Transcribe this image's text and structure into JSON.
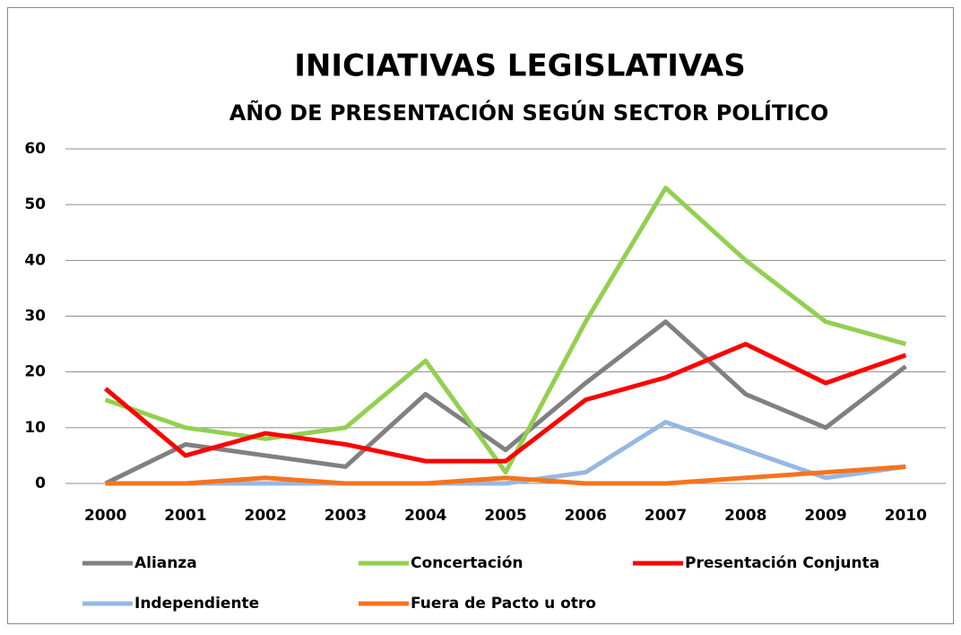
{
  "chart_data": {
    "type": "line",
    "title": "INICIATIVAS LEGISLATIVAS",
    "subtitle": "AÑO DE PRESENTACIÓN  SEGÚN SECTOR POLÍTICO",
    "categories": [
      "2000",
      "2001",
      "2002",
      "2003",
      "2004",
      "2005",
      "2006",
      "2007",
      "2008",
      "2009",
      "2010"
    ],
    "series": [
      {
        "name": "Alianza",
        "color": "#808080",
        "values": [
          0,
          7,
          5,
          3,
          16,
          6,
          18,
          29,
          16,
          10,
          21
        ]
      },
      {
        "name": "Concertación",
        "color": "#92d050",
        "values": [
          15,
          10,
          8,
          10,
          22,
          2,
          29,
          53,
          40,
          29,
          25
        ]
      },
      {
        "name": "Presentación Conjunta",
        "color": "#ff0000",
        "values": [
          17,
          5,
          9,
          7,
          4,
          4,
          15,
          19,
          25,
          18,
          23
        ]
      },
      {
        "name": "Independiente",
        "color": "#95b8e3",
        "values": [
          0,
          0,
          0,
          0,
          0,
          0,
          2,
          11,
          6,
          1,
          3
        ]
      },
      {
        "name": "Fuera de Pacto u otro",
        "color": "#f7731c",
        "values": [
          0,
          0,
          1,
          0,
          0,
          1,
          0,
          0,
          1,
          2,
          3
        ]
      }
    ],
    "ylim": [
      0,
      60
    ],
    "yticks": [
      0,
      10,
      20,
      30,
      40,
      50,
      60
    ],
    "grid": true,
    "legend": "bottom"
  }
}
